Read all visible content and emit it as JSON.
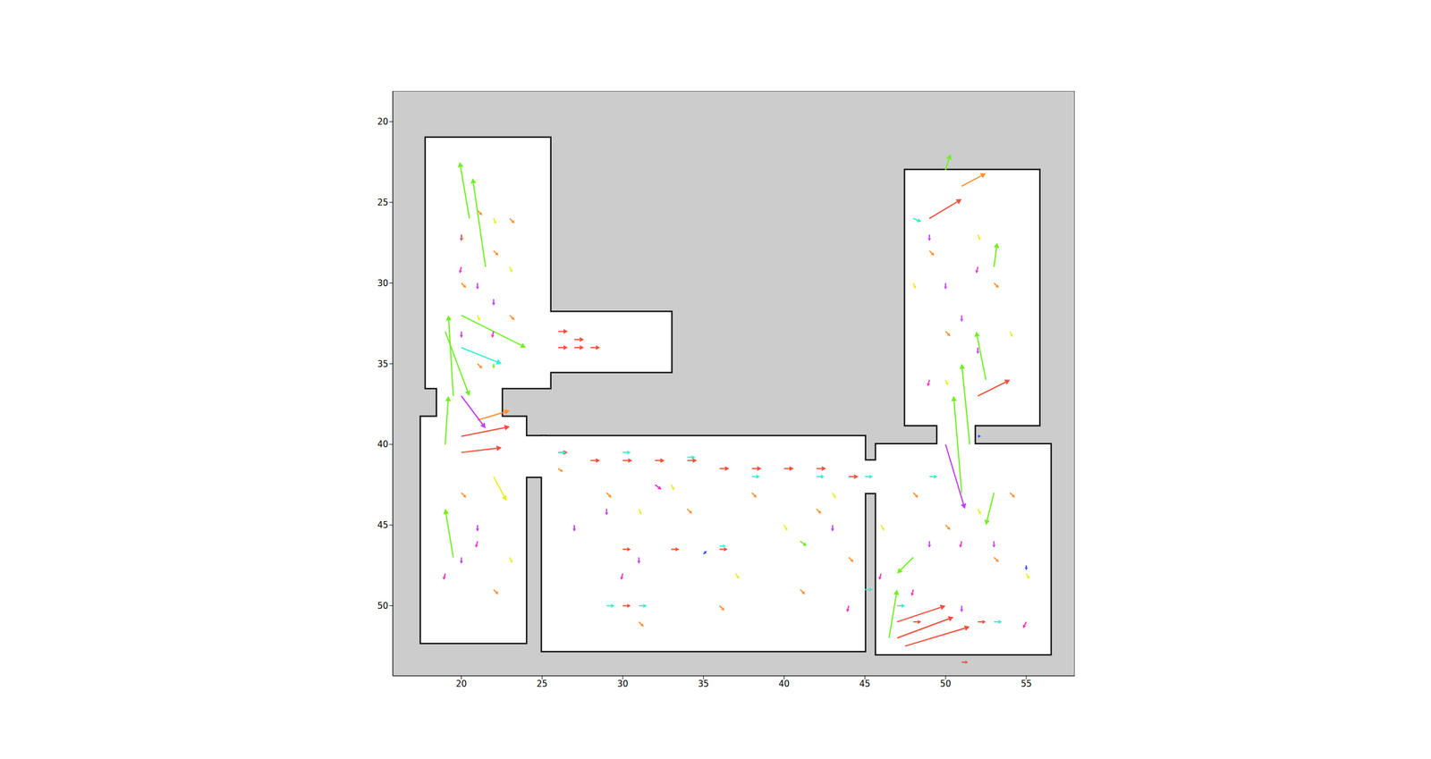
{
  "chart_data": {
    "type": "quiver",
    "xlim": [
      15.75,
      58.0
    ],
    "ylim": [
      54.35,
      18.1
    ],
    "xticks": [
      20,
      25,
      30,
      35,
      40,
      45,
      50,
      55
    ],
    "yticks": [
      20,
      25,
      30,
      35,
      40,
      45,
      50
    ],
    "background": "#cccccc",
    "free_space": [
      {
        "x": [
          17.8,
          25.5
        ],
        "y": [
          21.0,
          36.5
        ]
      },
      {
        "x": [
          25.3,
          33.0
        ],
        "y": [
          31.8,
          35.5
        ]
      },
      {
        "x": [
          18.5,
          22.5
        ],
        "y": [
          36.0,
          38.8
        ]
      },
      {
        "x": [
          17.5,
          24.0
        ],
        "y": [
          38.3,
          52.3
        ]
      },
      {
        "x": [
          23.8,
          25.2
        ],
        "y": [
          39.5,
          42.0
        ]
      },
      {
        "x": [
          25.0,
          45.0
        ],
        "y": [
          39.5,
          52.8
        ]
      },
      {
        "x": [
          44.8,
          46.0
        ],
        "y": [
          41.0,
          43.0
        ]
      },
      {
        "x": [
          45.7,
          56.5
        ],
        "y": [
          40.0,
          53.0
        ]
      },
      {
        "x": [
          49.5,
          51.8
        ],
        "y": [
          38.5,
          40.3
        ]
      },
      {
        "x": [
          47.5,
          55.8
        ],
        "y": [
          23.0,
          38.8
        ]
      }
    ],
    "series": [
      {
        "color": "#f0503c",
        "values": [
          [
            26,
            34,
            0.6,
            0
          ],
          [
            27,
            34,
            0.6,
            0
          ],
          [
            28,
            34,
            0.6,
            0
          ],
          [
            26,
            33,
            0.6,
            0
          ],
          [
            27,
            33.5,
            0.6,
            0
          ],
          [
            26,
            40.5,
            0.6,
            0
          ],
          [
            28,
            41,
            0.6,
            0
          ],
          [
            30,
            41,
            0.6,
            0
          ],
          [
            32,
            41,
            0.6,
            0
          ],
          [
            34,
            41,
            0.6,
            0
          ],
          [
            36,
            41.5,
            0.6,
            0
          ],
          [
            38,
            41.5,
            0.6,
            0
          ],
          [
            40,
            41.5,
            0.6,
            0
          ],
          [
            42,
            41.5,
            0.6,
            0
          ],
          [
            44,
            42,
            0.6,
            0
          ],
          [
            30,
            46.5,
            0.5,
            0
          ],
          [
            33,
            46.5,
            0.5,
            0
          ],
          [
            36,
            46.5,
            0.5,
            0
          ],
          [
            30,
            50,
            0.5,
            0
          ],
          [
            47,
            51,
            3,
            -1
          ],
          [
            47,
            52,
            3.5,
            -1.3
          ],
          [
            47.5,
            52.5,
            4,
            -1.2
          ],
          [
            20,
            39.5,
            3,
            -0.6
          ],
          [
            20,
            40.5,
            2.5,
            -0.3
          ],
          [
            52,
            37,
            2,
            -1
          ],
          [
            49,
            26,
            2,
            -1.2
          ],
          [
            52,
            51,
            0.5,
            0
          ],
          [
            51,
            53.5,
            0.4,
            0
          ],
          [
            48,
            51,
            0.5,
            0
          ]
        ]
      },
      {
        "color": "#ff9030",
        "values": [
          [
            21,
            25.5,
            0.3,
            0.3
          ],
          [
            23,
            26,
            0.3,
            0.3
          ],
          [
            22,
            28,
            0.3,
            0.3
          ],
          [
            20,
            30,
            0.3,
            0.3
          ],
          [
            23,
            32,
            0.3,
            0.3
          ],
          [
            21,
            35,
            0.3,
            0.3
          ],
          [
            26,
            41.5,
            0.3,
            0.2
          ],
          [
            29,
            43,
            0.3,
            0.3
          ],
          [
            34,
            44,
            0.3,
            0.3
          ],
          [
            38,
            43,
            0.3,
            0.3
          ],
          [
            42,
            44,
            0.3,
            0.3
          ],
          [
            41,
            49,
            0.3,
            0.3
          ],
          [
            36,
            50,
            0.3,
            0.3
          ],
          [
            31,
            51,
            0.3,
            0.3
          ],
          [
            44,
            47,
            0.3,
            0.3
          ],
          [
            48,
            43,
            0.3,
            0.3
          ],
          [
            50,
            45,
            0.3,
            0.3
          ],
          [
            54,
            43,
            0.3,
            0.3
          ],
          [
            53,
            47,
            0.3,
            0.3
          ],
          [
            49,
            28,
            0.3,
            0.3
          ],
          [
            53,
            30,
            0.3,
            0.3
          ],
          [
            50,
            33,
            0.3,
            0.3
          ],
          [
            51,
            24,
            1.5,
            -0.8
          ],
          [
            20,
            43,
            0.3,
            0.3
          ],
          [
            22,
            49,
            0.3,
            0.3
          ],
          [
            21,
            38.5,
            2,
            -0.6
          ]
        ]
      },
      {
        "color": "#e8ee20",
        "values": [
          [
            22,
            26,
            0.15,
            0.35
          ],
          [
            20,
            27,
            0.15,
            0.35
          ],
          [
            23,
            29,
            0.15,
            0.35
          ],
          [
            21,
            32,
            0.15,
            0.35
          ],
          [
            19,
            44,
            0.15,
            0.35
          ],
          [
            23,
            47,
            0.15,
            0.35
          ],
          [
            31,
            44,
            0.15,
            0.35
          ],
          [
            33,
            42.5,
            0.2,
            0.35
          ],
          [
            40,
            45,
            0.2,
            0.35
          ],
          [
            43,
            43,
            0.2,
            0.35
          ],
          [
            37,
            48,
            0.2,
            0.35
          ],
          [
            46,
            45,
            0.2,
            0.35
          ],
          [
            52,
            44,
            0.2,
            0.35
          ],
          [
            55,
            48,
            0.2,
            0.35
          ],
          [
            48,
            30,
            0.15,
            0.35
          ],
          [
            52,
            27,
            0.15,
            0.35
          ],
          [
            54,
            33,
            0.15,
            0.35
          ],
          [
            50,
            36,
            0.15,
            0.35
          ],
          [
            22,
            42,
            0.8,
            1.5
          ]
        ]
      },
      {
        "color": "#70f020",
        "values": [
          [
            21.5,
            29,
            -0.8,
            -5.5
          ],
          [
            20.5,
            26,
            -0.6,
            -3.5
          ],
          [
            19.5,
            37,
            -0.3,
            -5
          ],
          [
            19,
            40,
            0.2,
            -3
          ],
          [
            19.5,
            47,
            -0.5,
            -3
          ],
          [
            19,
            33,
            1.5,
            4
          ],
          [
            20,
            32,
            4,
            2
          ],
          [
            51,
            43,
            -0.5,
            -6
          ],
          [
            51.5,
            40,
            -0.5,
            -5
          ],
          [
            52.5,
            36,
            -0.6,
            -3
          ],
          [
            53,
            29,
            0.2,
            -1.5
          ],
          [
            46.5,
            52,
            0.5,
            -3
          ],
          [
            48,
            47,
            -1,
            1
          ],
          [
            41,
            46,
            0.4,
            0.3
          ],
          [
            50,
            23,
            0.3,
            -1
          ],
          [
            22,
            35,
            0,
            0.3
          ],
          [
            53,
            43,
            -0.5,
            2
          ]
        ]
      },
      {
        "color": "#30f0d0",
        "values": [
          [
            26,
            40.5,
            0.5,
            0
          ],
          [
            30,
            40.5,
            0.5,
            0
          ],
          [
            34,
            40.8,
            0.5,
            0
          ],
          [
            38,
            42,
            0.5,
            0
          ],
          [
            42,
            42,
            0.5,
            0
          ],
          [
            45,
            42,
            0.5,
            0
          ],
          [
            29,
            50,
            0.5,
            0
          ],
          [
            31,
            50,
            0.5,
            0
          ],
          [
            45,
            49,
            0.5,
            0
          ],
          [
            47,
            50,
            0.5,
            0
          ],
          [
            49,
            42,
            0.5,
            0
          ],
          [
            53,
            51,
            0.5,
            0
          ],
          [
            36,
            46.3,
            0.4,
            0
          ],
          [
            20,
            34,
            2.5,
            1
          ],
          [
            48,
            26,
            0.5,
            0.2
          ]
        ]
      },
      {
        "color": "#c040f0",
        "values": [
          [
            20,
            27,
            0,
            0.4
          ],
          [
            21,
            30,
            0,
            0.4
          ],
          [
            22,
            31,
            0,
            0.4
          ],
          [
            20,
            33,
            0,
            0.4
          ],
          [
            21,
            45,
            0,
            0.4
          ],
          [
            20,
            47,
            0,
            0.4
          ],
          [
            27,
            45,
            0,
            0.4
          ],
          [
            29,
            44,
            0,
            0.4
          ],
          [
            31,
            47,
            0,
            0.4
          ],
          [
            43,
            45,
            0,
            0.4
          ],
          [
            49,
            27,
            0,
            0.4
          ],
          [
            50,
            30,
            0,
            0.4
          ],
          [
            51,
            32,
            0,
            0.4
          ],
          [
            52,
            34,
            0,
            0.4
          ],
          [
            50,
            40,
            1.2,
            4
          ],
          [
            49,
            46,
            0,
            0.4
          ],
          [
            53,
            46,
            0,
            0.4
          ],
          [
            20,
            37,
            1.5,
            2
          ],
          [
            51,
            50,
            0,
            0.4
          ]
        ]
      },
      {
        "color": "#ff30c0",
        "values": [
          [
            20,
            29,
            -0.1,
            0.4
          ],
          [
            22,
            33,
            -0.1,
            0.4
          ],
          [
            21,
            46,
            -0.1,
            0.4
          ],
          [
            19,
            48,
            -0.1,
            0.4
          ],
          [
            30,
            48,
            -0.1,
            0.4
          ],
          [
            44,
            50,
            -0.1,
            0.4
          ],
          [
            46,
            48,
            -0.1,
            0.4
          ],
          [
            48,
            49,
            -0.1,
            0.4
          ],
          [
            51,
            46,
            -0.1,
            0.4
          ],
          [
            55,
            51,
            -0.2,
            0.4
          ],
          [
            52,
            29,
            -0.1,
            0.4
          ],
          [
            49,
            36,
            -0.1,
            0.4
          ],
          [
            32,
            42.5,
            0.4,
            0.3
          ]
        ]
      },
      {
        "color": "#3050ff",
        "values": [
          [
            35,
            46.8,
            0.2,
            -0.2
          ],
          [
            55,
            47.5,
            0,
            0.3
          ],
          [
            52,
            39.5,
            0.2,
            0
          ]
        ]
      }
    ]
  }
}
